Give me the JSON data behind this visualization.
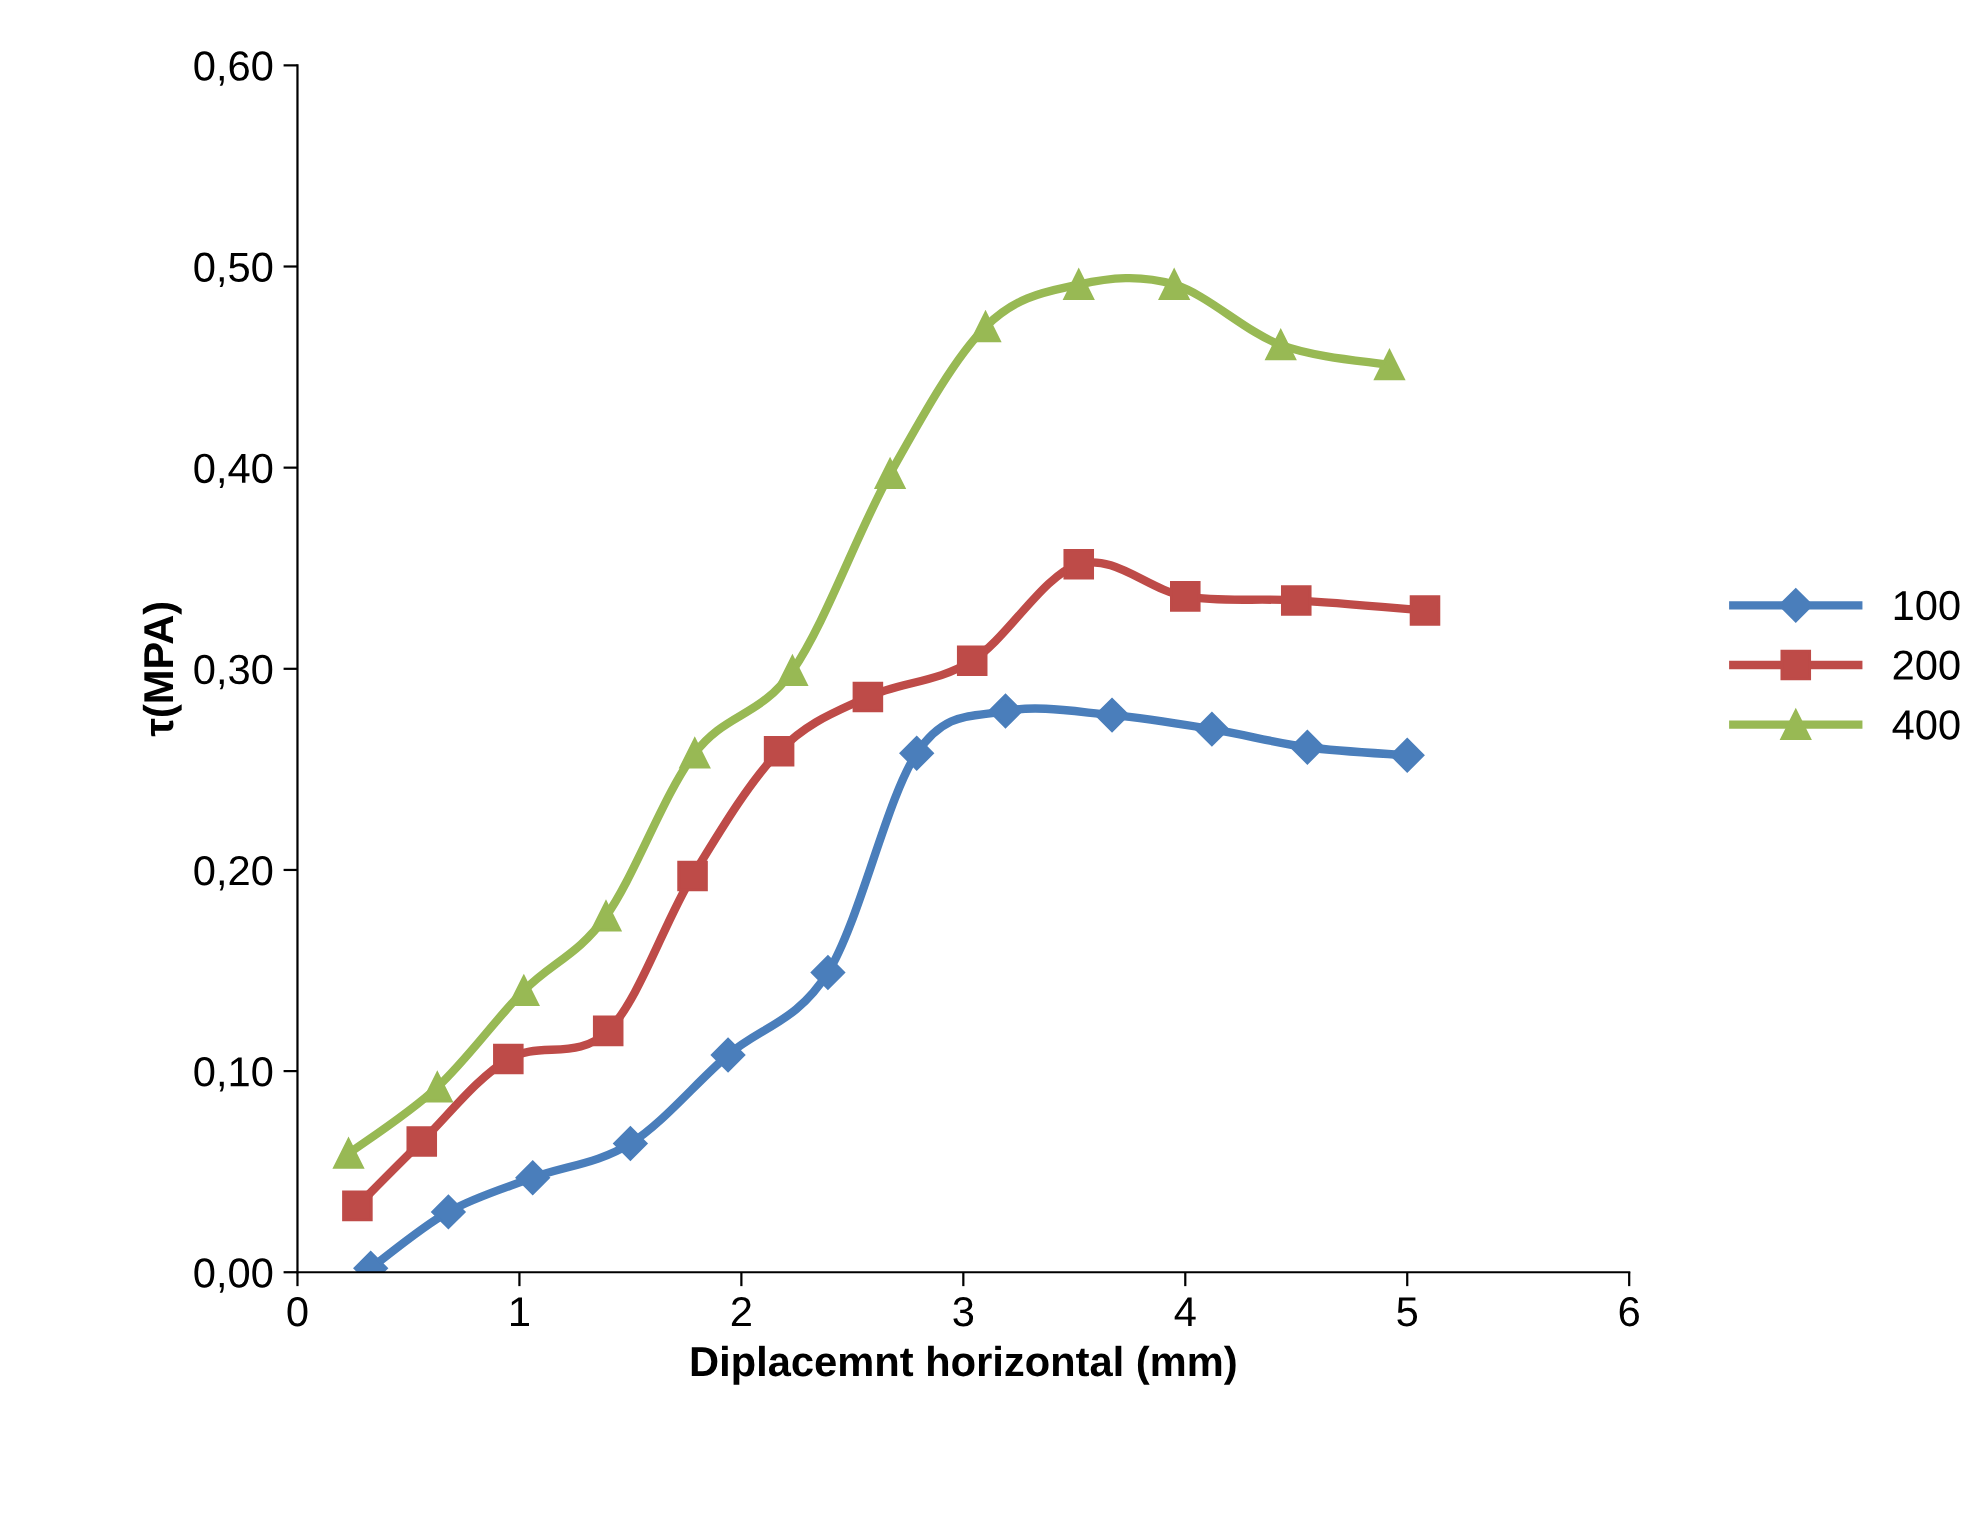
{
  "chart_data": {
    "type": "line",
    "xlabel": "Diplacemnt horizontal (mm)",
    "ylabel": "τ(MPA)",
    "xlim": [
      0,
      6
    ],
    "xticks": [
      0,
      1,
      2,
      3,
      4,
      5,
      6
    ],
    "ylim": [
      0,
      0.6
    ],
    "yticks": [
      {
        "value": 0,
        "label": "0,00"
      },
      {
        "value": 0.1,
        "label": "0,10"
      },
      {
        "value": 0.2,
        "label": "0,20"
      },
      {
        "value": 0.3,
        "label": "0,30"
      },
      {
        "value": 0.4,
        "label": "0,40"
      },
      {
        "value": 0.5,
        "label": "0,50"
      },
      {
        "value": 0.6,
        "label": "0,60"
      }
    ],
    "grid": false,
    "legend": "right",
    "line_style": "solid",
    "series": [
      {
        "name": "100",
        "color": "#4a7ebb",
        "marker": "diamond",
        "x": [
          0.33,
          0.68,
          1.06,
          1.5,
          1.94,
          2.39,
          2.79,
          3.19,
          3.67,
          4.12,
          4.55,
          5.0
        ],
        "values": [
          0.002,
          0.03,
          0.047,
          0.064,
          0.108,
          0.149,
          0.258,
          0.279,
          0.277,
          0.27,
          0.261,
          0.257
        ]
      },
      {
        "name": "200",
        "color": "#be4b48",
        "marker": "square",
        "x": [
          0.27,
          0.56,
          0.95,
          1.4,
          1.78,
          2.17,
          2.57,
          3.04,
          3.52,
          4.0,
          4.5,
          5.08
        ],
        "values": [
          0.033,
          0.065,
          0.106,
          0.12,
          0.197,
          0.259,
          0.286,
          0.304,
          0.352,
          0.336,
          0.334,
          0.329
        ]
      },
      {
        "name": "400",
        "color": "#98b954",
        "marker": "triangle",
        "x": [
          0.23,
          0.63,
          1.02,
          1.39,
          1.79,
          2.23,
          2.67,
          3.1,
          3.52,
          3.95,
          4.43,
          4.92
        ],
        "values": [
          0.059,
          0.092,
          0.14,
          0.177,
          0.258,
          0.299,
          0.397,
          0.47,
          0.491,
          0.491,
          0.461,
          0.451
        ]
      }
    ]
  }
}
